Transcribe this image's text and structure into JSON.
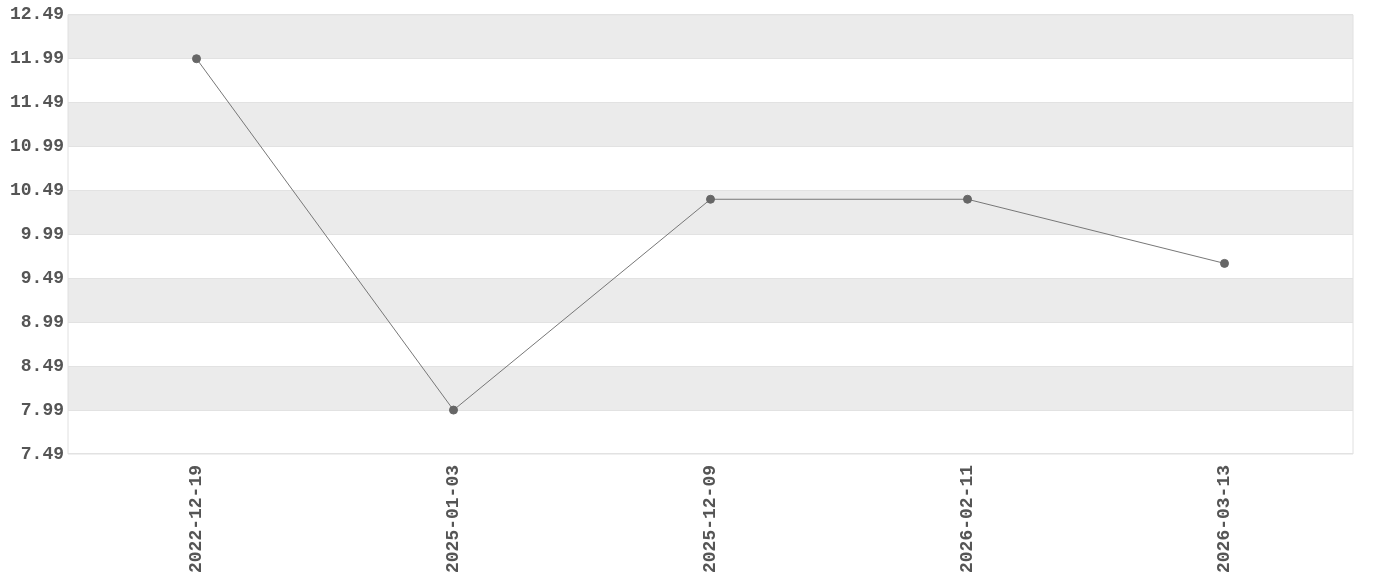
{
  "chart_data": {
    "type": "line",
    "categories": [
      "2022-12-19",
      "2025-01-03",
      "2025-12-09",
      "2026-02-11",
      "2026-03-13"
    ],
    "series": [
      {
        "color": "#777777",
        "values": [
          11.99,
          7.99,
          10.39,
          10.39,
          9.66
        ]
      }
    ],
    "ylim": [
      7.49,
      12.49
    ],
    "yticks": [
      7.49,
      7.99,
      8.49,
      8.99,
      9.49,
      9.99,
      10.49,
      10.99,
      11.49,
      11.99,
      12.49
    ],
    "grid": true,
    "marker": "circle",
    "legend": false
  }
}
